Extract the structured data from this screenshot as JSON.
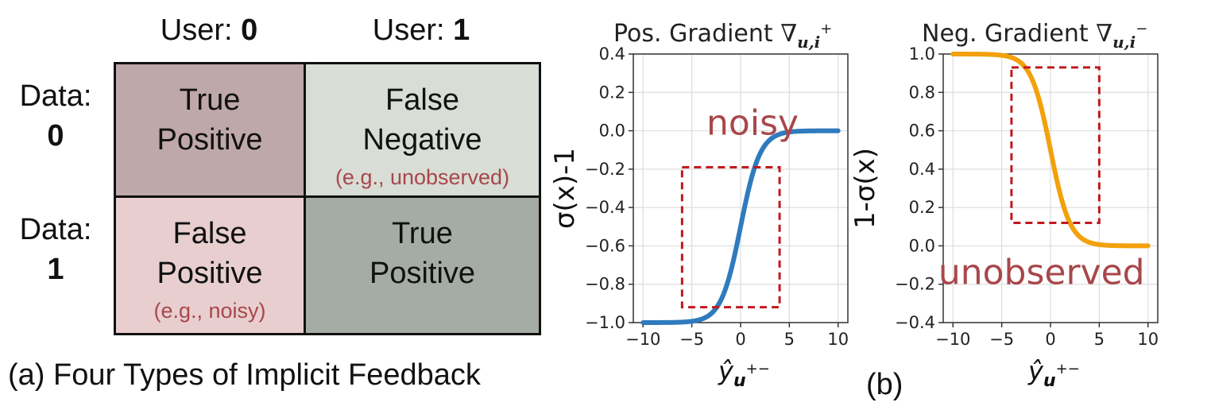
{
  "table": {
    "col_headers": [
      {
        "prefix": "User: ",
        "value": "0"
      },
      {
        "prefix": "User: ",
        "value": "1"
      }
    ],
    "row_headers": [
      {
        "prefix": "Data:",
        "value": "0"
      },
      {
        "prefix": "Data:",
        "value": "1"
      }
    ],
    "cells": [
      {
        "line1": "True",
        "line2": "Positive",
        "example": "",
        "color": "#bfa8a9"
      },
      {
        "line1": "False",
        "line2": "Negative",
        "example": "(e.g., unobserved)",
        "color": "#d8ddd5"
      },
      {
        "line1": "False",
        "line2": "Positive",
        "example": "(e.g., noisy)",
        "color": "#e8cecf"
      },
      {
        "line1": "True",
        "line2": "Positive",
        "example": "",
        "color": "#a5aca5"
      }
    ]
  },
  "captions": {
    "a": "(a) Four Types of Implicit Feedback",
    "b": "(b)"
  },
  "chart_data": [
    {
      "type": "line",
      "title": "Pos. Gradient ∇u,i⁺",
      "title_text": "Pos. Gradient",
      "title_symbol": "∇",
      "title_sub": "u,i",
      "title_sup": "+",
      "ylabel": "σ(x)-1",
      "xlabel": "ŷu+−",
      "xlabel_main": "ŷ",
      "xlabel_sub": "u",
      "xlabel_sup": "+−",
      "xlim": [
        -11,
        11
      ],
      "ylim": [
        -1.0,
        0.4
      ],
      "xticks": [
        -10,
        -5,
        0,
        5,
        10
      ],
      "yticks": [
        0.4,
        0.2,
        0.0,
        -0.2,
        -0.4,
        -0.6,
        -0.8,
        -1.0
      ],
      "ytick_labels": [
        "0.4",
        "0.2",
        "0.0",
        "−0.2",
        "−0.4",
        "−0.6",
        "−0.8",
        "−1.0"
      ],
      "xtick_labels": [
        "−10",
        "−5",
        "0",
        "5",
        "10"
      ],
      "grid": true,
      "series": [
        {
          "function": "sigmoid_minus_one",
          "x_range": [
            -10,
            10
          ],
          "color": "#2e7bbd"
        }
      ],
      "annotation": {
        "text": "noisy",
        "x": -3.5,
        "y": -0.02,
        "color": "#a8474b"
      },
      "box": {
        "x": [
          -6,
          4
        ],
        "y": [
          -0.92,
          -0.19
        ],
        "color": "#c0191f"
      }
    },
    {
      "type": "line",
      "title": "Neg. Gradient ∇u,i⁻",
      "title_text": "Neg. Gradient",
      "title_symbol": "∇",
      "title_sub": "u,i",
      "title_sup": "−",
      "ylabel": "1-σ(x)",
      "xlabel": "ŷu+−",
      "xlabel_main": "ŷ",
      "xlabel_sub": "u",
      "xlabel_sup": "+−",
      "xlim": [
        -11,
        11
      ],
      "ylim": [
        -0.4,
        1.0
      ],
      "xticks": [
        -10,
        -5,
        0,
        5,
        10
      ],
      "yticks": [
        1.0,
        0.8,
        0.6,
        0.4,
        0.2,
        0.0,
        -0.2,
        -0.4
      ],
      "ytick_labels": [
        "1.0",
        "0.8",
        "0.6",
        "0.4",
        "0.2",
        "0.0",
        "−0.2",
        "−0.4"
      ],
      "xtick_labels": [
        "−10",
        "−5",
        "0",
        "5",
        "10"
      ],
      "grid": true,
      "series": [
        {
          "function": "one_minus_sigmoid",
          "x_range": [
            -10,
            10
          ],
          "color": "#f2a10c"
        }
      ],
      "annotation": {
        "text": "unobserved",
        "x": -11.5,
        "y": -0.2,
        "color": "#a8474b"
      },
      "box": {
        "x": [
          -4,
          5
        ],
        "y": [
          0.12,
          0.93
        ],
        "color": "#c0191f"
      }
    }
  ]
}
